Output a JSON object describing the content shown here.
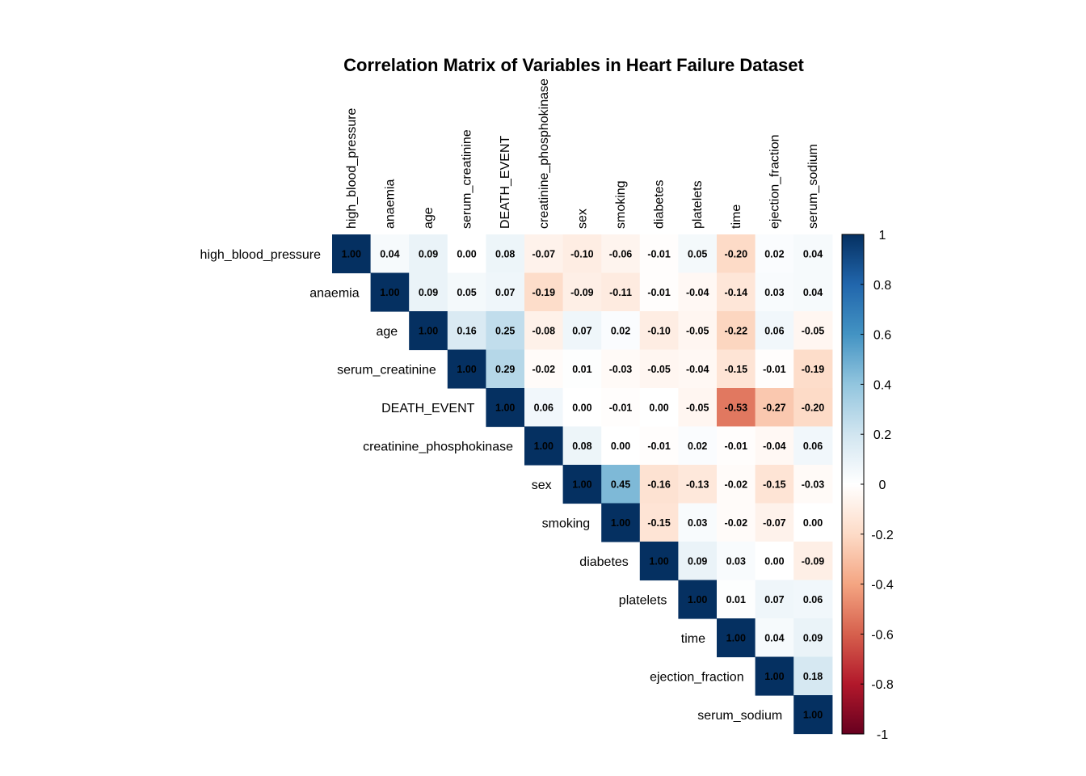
{
  "chart_data": {
    "type": "heatmap",
    "title": "Correlation Matrix of Variables in Heart Failure Dataset",
    "variables": [
      "high_blood_pressure",
      "anaemia",
      "age",
      "serum_creatinine",
      "DEATH_EVENT",
      "creatinine_phosphokinase",
      "sex",
      "smoking",
      "diabetes",
      "platelets",
      "time",
      "ejection_fraction",
      "serum_sodium"
    ],
    "layout": "upper-triangle",
    "matrix": [
      [
        1.0,
        0.04,
        0.09,
        0.0,
        0.08,
        -0.07,
        -0.1,
        -0.06,
        -0.01,
        0.05,
        -0.2,
        0.02,
        0.04
      ],
      [
        0.04,
        1.0,
        0.09,
        0.05,
        0.07,
        -0.19,
        -0.09,
        -0.11,
        -0.01,
        -0.04,
        -0.14,
        0.03,
        0.04
      ],
      [
        0.09,
        0.09,
        1.0,
        0.16,
        0.25,
        -0.08,
        0.07,
        0.02,
        -0.1,
        -0.05,
        -0.22,
        0.06,
        -0.05
      ],
      [
        0.0,
        0.05,
        0.16,
        1.0,
        0.29,
        -0.02,
        0.01,
        -0.03,
        -0.05,
        -0.04,
        -0.15,
        -0.01,
        -0.19
      ],
      [
        0.08,
        0.07,
        0.25,
        0.29,
        1.0,
        0.06,
        0.0,
        -0.01,
        0.0,
        -0.05,
        -0.53,
        -0.27,
        -0.2
      ],
      [
        -0.07,
        -0.19,
        -0.08,
        -0.02,
        0.06,
        1.0,
        0.08,
        0.0,
        -0.01,
        0.02,
        -0.01,
        -0.04,
        0.06
      ],
      [
        -0.1,
        -0.09,
        0.07,
        0.01,
        0.0,
        0.08,
        1.0,
        0.45,
        -0.16,
        -0.13,
        -0.02,
        -0.15,
        -0.03
      ],
      [
        -0.06,
        -0.11,
        0.02,
        -0.03,
        -0.01,
        0.0,
        0.45,
        1.0,
        -0.15,
        0.03,
        -0.02,
        -0.07,
        0.0
      ],
      [
        -0.01,
        -0.01,
        -0.1,
        -0.05,
        0.0,
        -0.01,
        -0.16,
        -0.15,
        1.0,
        0.09,
        0.03,
        0.0,
        -0.09
      ],
      [
        0.05,
        -0.04,
        -0.05,
        -0.04,
        -0.05,
        0.02,
        -0.13,
        0.03,
        0.09,
        1.0,
        0.01,
        0.07,
        0.06
      ],
      [
        -0.2,
        -0.14,
        -0.22,
        -0.15,
        -0.53,
        -0.01,
        -0.02,
        -0.02,
        0.03,
        0.01,
        1.0,
        0.04,
        0.09
      ],
      [
        0.02,
        0.03,
        0.06,
        -0.01,
        -0.27,
        -0.04,
        -0.15,
        -0.07,
        0.0,
        0.07,
        0.04,
        1.0,
        0.18
      ],
      [
        0.04,
        0.04,
        -0.05,
        -0.19,
        -0.2,
        0.06,
        -0.03,
        0.0,
        -0.09,
        0.06,
        0.09,
        0.18,
        1.0
      ]
    ],
    "color_scale": {
      "range": [
        -1,
        1
      ],
      "stops": [
        "#67001F",
        "#B2182B",
        "#D6604D",
        "#F4A582",
        "#FDDBC7",
        "#FFFFFF",
        "#D1E5F0",
        "#92C5DE",
        "#4393C3",
        "#2166AC",
        "#053061"
      ]
    },
    "legend": {
      "position": "right",
      "ticks": [
        "1",
        "0.8",
        "0.6",
        "0.4",
        "0.2",
        "0",
        "-0.2",
        "-0.4",
        "-0.6",
        "-0.8",
        "-1"
      ]
    }
  }
}
